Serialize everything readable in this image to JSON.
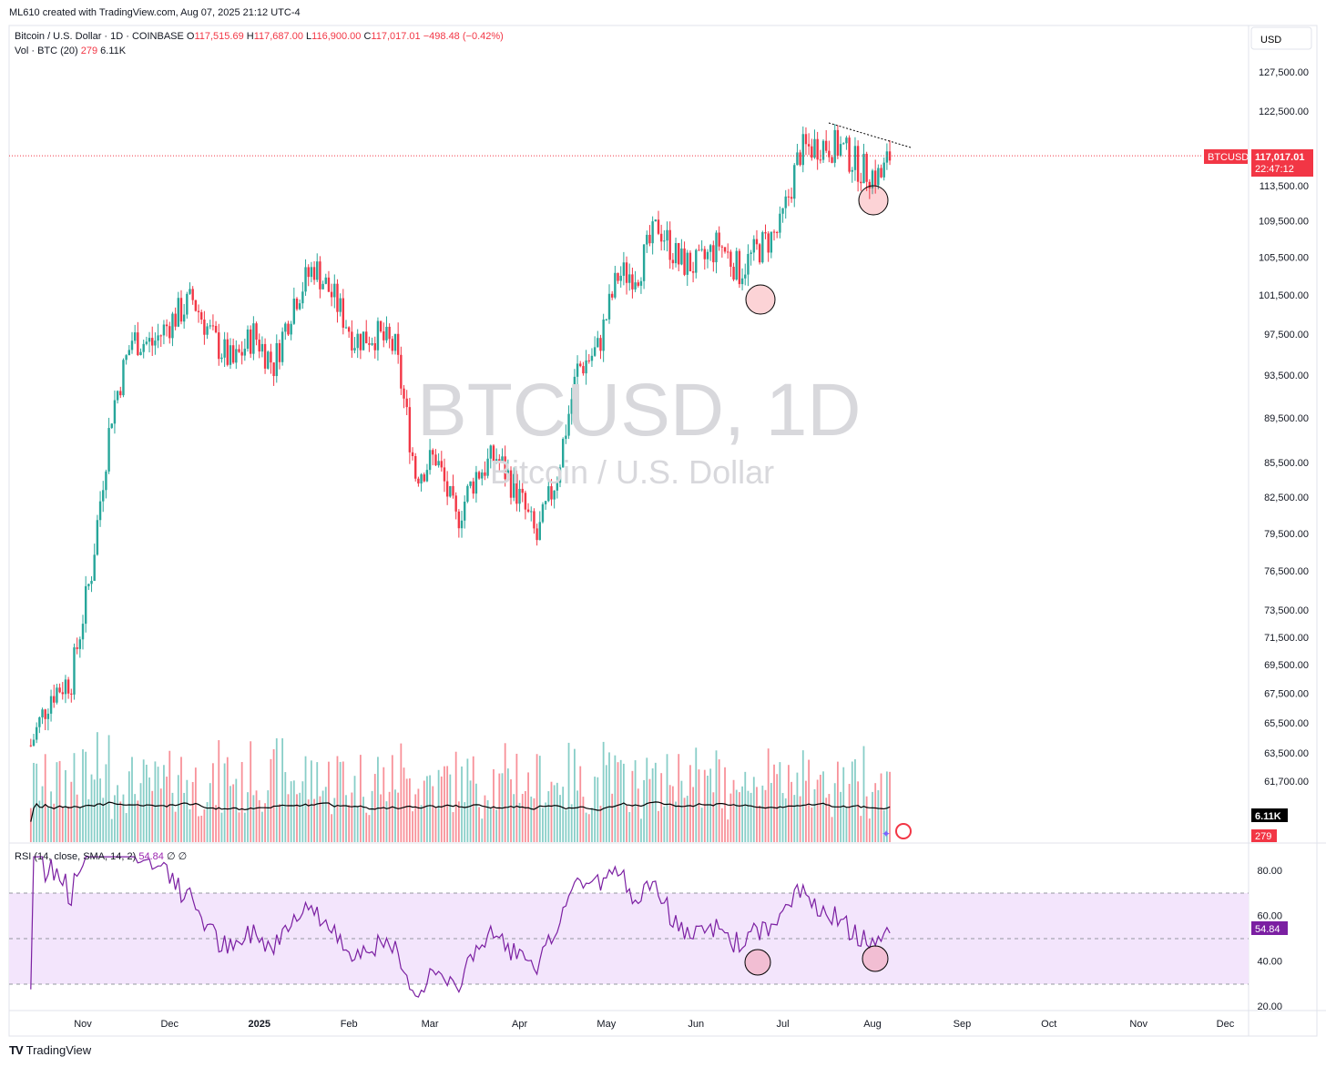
{
  "header": {
    "creator_line": "ML610 created with TradingView.com, Aug 07, 2025 21:12 UTC-4"
  },
  "legend": {
    "symbol": "Bitcoin / U.S. Dollar · 1D · COINBASE",
    "o_label": "O",
    "o_value": "117,515.69",
    "h_label": "H",
    "h_value": "117,687.00",
    "l_label": "L",
    "l_value": "116,900.00",
    "c_label": "C",
    "c_value": "117,017.01",
    "change": "−498.48 (−0.42%)",
    "vol_label": "Vol · BTC (20)",
    "vol_value_1": "279",
    "vol_value_2": "6.11K",
    "rsi_label": "RSI (14, close, SMA, 14, 2)",
    "rsi_value": "54.84",
    "rsi_extra": "∅ ∅"
  },
  "watermark": {
    "line1": "BTCUSD, 1D",
    "line2": "Bitcoin / U.S. Dollar"
  },
  "footer": {
    "logo": "TV",
    "brand": "TradingView"
  },
  "colors": {
    "up": "#26a69a",
    "down": "#f23645",
    "rsi_line": "#7b1fa2",
    "rsi_band": "#f3e5fc",
    "ma_line": "#000000"
  },
  "chart_data": {
    "type": "candlestick",
    "currency_label": "USD",
    "price_axis": [
      "127,500.00",
      "122,500.00",
      "113,500.00",
      "109,500.00",
      "105,500.00",
      "101,500.00",
      "97,500.00",
      "93,500.00",
      "89,500.00",
      "85,500.00",
      "82,500.00",
      "79,500.00",
      "76,500.00",
      "73,500.00",
      "71,500.00",
      "69,500.00",
      "67,500.00",
      "65,500.00",
      "63,500.00",
      "61,700.00"
    ],
    "price_axis_scale": "log",
    "x_axis": [
      "Nov",
      "Dec",
      "2025",
      "Feb",
      "Mar",
      "Apr",
      "May",
      "Jun",
      "Jul",
      "Aug",
      "Sep",
      "Oct",
      "Nov",
      "Dec"
    ],
    "last_price": 117017.01,
    "last_price_label": "117,017.01",
    "countdown": "22:47:12",
    "ticker_tag": "BTCUSD",
    "price_path": [
      {
        "date": "2024-10-14",
        "close": 64000
      },
      {
        "date": "2024-10-21",
        "close": 67500
      },
      {
        "date": "2024-10-28",
        "close": 68500
      },
      {
        "date": "2024-11-04",
        "close": 76500
      },
      {
        "date": "2024-11-11",
        "close": 90000
      },
      {
        "date": "2024-11-18",
        "close": 97000
      },
      {
        "date": "2024-11-25",
        "close": 96500
      },
      {
        "date": "2024-12-02",
        "close": 99000
      },
      {
        "date": "2024-12-09",
        "close": 101000
      },
      {
        "date": "2024-12-16",
        "close": 97000
      },
      {
        "date": "2024-12-23",
        "close": 94500
      },
      {
        "date": "2024-12-30",
        "close": 97500
      },
      {
        "date": "2025-01-06",
        "close": 94500
      },
      {
        "date": "2025-01-13",
        "close": 101000
      },
      {
        "date": "2025-01-20",
        "close": 104500
      },
      {
        "date": "2025-01-27",
        "close": 101000
      },
      {
        "date": "2025-02-03",
        "close": 97000
      },
      {
        "date": "2025-02-10",
        "close": 97500
      },
      {
        "date": "2025-02-17",
        "close": 96000
      },
      {
        "date": "2025-02-24",
        "close": 84500
      },
      {
        "date": "2025-03-03",
        "close": 86000
      },
      {
        "date": "2025-03-10",
        "close": 80500
      },
      {
        "date": "2025-03-17",
        "close": 84500
      },
      {
        "date": "2025-03-24",
        "close": 86000
      },
      {
        "date": "2025-03-31",
        "close": 83000
      },
      {
        "date": "2025-04-07",
        "close": 79000
      },
      {
        "date": "2025-04-14",
        "close": 84500
      },
      {
        "date": "2025-04-21",
        "close": 94000
      },
      {
        "date": "2025-04-28",
        "close": 96000
      },
      {
        "date": "2025-05-05",
        "close": 103500
      },
      {
        "date": "2025-05-12",
        "close": 104000
      },
      {
        "date": "2025-05-19",
        "close": 109000
      },
      {
        "date": "2025-05-26",
        "close": 105000
      },
      {
        "date": "2025-06-02",
        "close": 104500
      },
      {
        "date": "2025-06-09",
        "close": 107000
      },
      {
        "date": "2025-06-16",
        "close": 104000
      },
      {
        "date": "2025-06-23",
        "close": 106500
      },
      {
        "date": "2025-06-30",
        "close": 108500
      },
      {
        "date": "2025-07-07",
        "close": 117500
      },
      {
        "date": "2025-07-14",
        "close": 118500
      },
      {
        "date": "2025-07-21",
        "close": 118000
      },
      {
        "date": "2025-07-28",
        "close": 115500
      },
      {
        "date": "2025-08-04",
        "close": 114500
      },
      {
        "date": "2025-08-07",
        "close": 117017
      }
    ],
    "volume_label_1": "6.11K",
    "volume_label_2": "279",
    "rsi_axis": [
      "80.00",
      "60.00",
      "40.00",
      "20.00"
    ],
    "rsi_value_label": "54.84",
    "rsi_bands": [
      70,
      50,
      30
    ]
  }
}
